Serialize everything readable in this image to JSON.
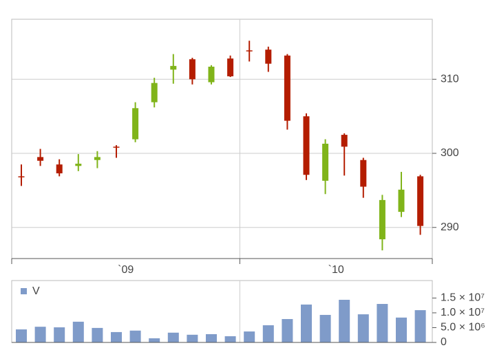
{
  "chart_data": [
    {
      "type": "candlestick",
      "x_labels": [
        "`09",
        "`10"
      ],
      "open": [
        296.9,
        299.5,
        298.5,
        298.3,
        299.1,
        300.9,
        301.9,
        306.9,
        311.3,
        312.7,
        309.6,
        312.8,
        313.9,
        314.0,
        313.2,
        305.0,
        296.3,
        302.5,
        299.1,
        288.4,
        292.1,
        296.9
      ],
      "high": [
        298.5,
        300.6,
        299.2,
        299.9,
        300.3,
        301.1,
        306.9,
        310.2,
        313.4,
        312.9,
        311.9,
        313.2,
        315.2,
        314.4,
        313.4,
        305.4,
        301.9,
        302.7,
        299.4,
        294.4,
        297.5,
        297.1
      ],
      "low": [
        295.6,
        298.3,
        296.9,
        297.6,
        298.0,
        299.4,
        301.5,
        306.2,
        309.4,
        309.3,
        309.3,
        310.3,
        312.4,
        311.0,
        303.2,
        296.4,
        294.5,
        297.0,
        294.0,
        286.9,
        291.4,
        289.0
      ],
      "close": [
        296.8,
        299.0,
        297.3,
        298.6,
        299.5,
        300.8,
        306.1,
        309.5,
        311.8,
        310.0,
        311.7,
        310.4,
        313.8,
        312.1,
        304.4,
        297.1,
        301.3,
        300.9,
        295.5,
        293.7,
        295.1,
        290.2
      ],
      "up_color": "#80b41a",
      "down_color": "#b41d00",
      "ylim": [
        285.8,
        318.1
      ],
      "yticks": [
        290,
        300,
        310
      ],
      "grid": true
    },
    {
      "type": "bar",
      "series": [
        {
          "name": "V",
          "color": "#7f9bc9",
          "values": [
            4400000,
            5300000,
            5100000,
            7000000,
            4900000,
            3500000,
            4000000,
            1400000,
            3300000,
            2600000,
            2800000,
            2100000,
            3700000,
            5800000,
            7900000,
            12800000,
            9300000,
            14400000,
            9500000,
            13000000,
            8400000,
            10900000
          ]
        }
      ],
      "ylim": [
        0,
        20900000
      ],
      "yticks": [
        0,
        {
          "value": 5000000,
          "label": "5.0 × 10⁶"
        },
        {
          "value": 10000000,
          "label": "1.0 × 10⁷"
        },
        {
          "value": 15000000,
          "label": "1.5 × 10⁷"
        }
      ]
    }
  ]
}
